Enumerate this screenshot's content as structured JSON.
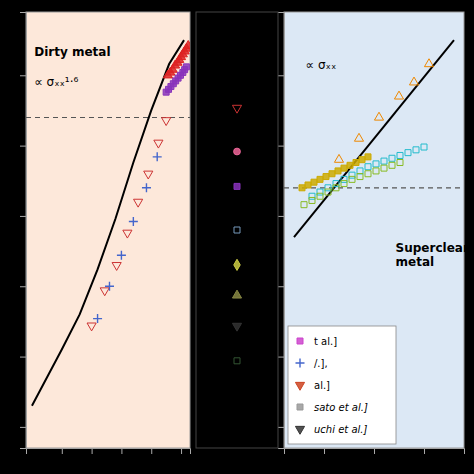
{
  "chart_data": [
    {
      "type": "scatter",
      "xlim": [
        -0.6,
        2.15
      ],
      "ylim": [
        -0.65,
        2.45
      ],
      "xticks": [
        0,
        0.5,
        1,
        1.5,
        2
      ],
      "yticks": [
        -0.5,
        0,
        0.5,
        1,
        1.5,
        2
      ],
      "tick_labels": false,
      "hline": {
        "y": 1.7,
        "color": "#555555",
        "line_style": "dashed"
      },
      "annotations": [
        {
          "text": "Dirty metal"
        },
        {
          "text": "∝ σₓₓ¹·⁶"
        }
      ],
      "series": [
        {
          "type": "line",
          "color": "#000000",
          "x": [
            -0.5,
            0.0,
            0.3,
            0.6,
            0.9,
            1.2,
            1.5,
            1.8,
            2.05
          ],
          "values": [
            -0.35,
            0.05,
            0.3,
            0.62,
            0.98,
            1.38,
            1.75,
            2.08,
            2.25
          ]
        },
        {
          "type": "scatter",
          "color": "#cc3333",
          "marker": "triangle-down-open",
          "x": [
            0.5,
            0.72,
            0.92,
            1.1,
            1.28,
            1.45,
            1.62,
            1.75
          ],
          "values": [
            0.22,
            0.47,
            0.65,
            0.88,
            1.1,
            1.3,
            1.52,
            1.68
          ]
        },
        {
          "type": "scatter",
          "color": "#4466cc",
          "marker": "plus",
          "x": [
            0.6,
            0.8,
            1.0,
            1.2,
            1.42,
            1.6
          ],
          "values": [
            0.27,
            0.5,
            0.72,
            0.96,
            1.2,
            1.42
          ]
        },
        {
          "type": "scatter",
          "color": "#dd2222",
          "marker": "triangle-up",
          "x": [
            1.78,
            1.82,
            1.86,
            1.9,
            1.94,
            1.97,
            2.0,
            2.03,
            2.06,
            2.09,
            2.12
          ],
          "values": [
            2.0,
            2.02,
            2.04,
            2.07,
            2.09,
            2.11,
            2.13,
            2.15,
            2.17,
            2.19,
            2.21
          ]
        },
        {
          "type": "scatter",
          "color": "#8833bb",
          "marker": "square",
          "x": [
            1.75,
            1.79,
            1.83,
            1.87,
            1.91,
            1.95,
            1.99,
            2.03,
            2.06,
            2.09
          ],
          "values": [
            1.88,
            1.9,
            1.92,
            1.94,
            1.96,
            1.98,
            2.0,
            2.02,
            2.04,
            2.06
          ]
        }
      ]
    },
    {
      "type": "scatter",
      "xlim": [
        2.6,
        4.4
      ],
      "ylim": [
        -0.15,
        2.95
      ],
      "xticks": [
        3,
        3.5,
        4
      ],
      "yticks": [
        0,
        0.5,
        1,
        1.5,
        2,
        2.5
      ],
      "tick_labels": false,
      "hline": {
        "y": 1.7,
        "color": "#555555",
        "line_style": "dashed"
      },
      "annotations": [
        {
          "text": "Superclean\nmetal"
        },
        {
          "text": "∝ σₓₓ"
        }
      ],
      "legend": "lower left",
      "legend_entries": [
        {
          "name": "t al.]",
          "color": "#cc44cc",
          "marker": "square"
        },
        {
          "name": "/.],",
          "color": "#4466cc",
          "marker": "plus"
        },
        {
          "name": "al.]",
          "color": "#cc4422",
          "marker": "triangle-down"
        },
        {
          "name": "sato et al.]",
          "color": "#999999",
          "marker": "square"
        },
        {
          "name": "uchi et al.]",
          "color": "#333333",
          "marker": "triangle-down"
        }
      ],
      "series": [
        {
          "type": "line",
          "color": "#000000",
          "x": [
            2.7,
            4.3
          ],
          "values": [
            1.35,
            2.75
          ]
        },
        {
          "type": "scatter",
          "color": "#ee8800",
          "marker": "triangle-up-open",
          "x": [
            3.15,
            3.35,
            3.55,
            3.75,
            3.9,
            4.05
          ],
          "values": [
            1.9,
            2.05,
            2.2,
            2.35,
            2.45,
            2.58
          ]
        },
        {
          "type": "scatter",
          "color": "#22bbcc",
          "marker": "square-open",
          "x": [
            2.88,
            2.96,
            3.04,
            3.12,
            3.2,
            3.28,
            3.36,
            3.44,
            3.52,
            3.6,
            3.68,
            3.76,
            3.84,
            3.92,
            4.0
          ],
          "values": [
            1.64,
            1.67,
            1.7,
            1.73,
            1.76,
            1.79,
            1.82,
            1.85,
            1.87,
            1.89,
            1.91,
            1.93,
            1.95,
            1.97,
            1.99
          ]
        },
        {
          "type": "scatter",
          "color": "#88bb22",
          "marker": "square-open",
          "x": [
            2.8,
            2.88,
            2.96,
            3.04,
            3.12,
            3.2,
            3.28,
            3.36,
            3.44,
            3.52,
            3.6,
            3.68,
            3.76
          ],
          "values": [
            1.58,
            1.61,
            1.64,
            1.67,
            1.7,
            1.73,
            1.76,
            1.78,
            1.8,
            1.82,
            1.84,
            1.86,
            1.88
          ]
        },
        {
          "type": "scatter",
          "color": "#ccaa00",
          "marker": "square",
          "x": [
            2.78,
            2.84,
            2.9,
            2.96,
            3.02,
            3.08,
            3.14,
            3.2,
            3.26,
            3.32,
            3.38,
            3.44
          ],
          "values": [
            1.7,
            1.72,
            1.74,
            1.76,
            1.78,
            1.8,
            1.82,
            1.84,
            1.86,
            1.88,
            1.9,
            1.92
          ]
        }
      ]
    },
    {
      "type": "scatter",
      "xlim": [
        0,
        1
      ],
      "ylim": [
        0,
        1
      ],
      "tick_labels": false,
      "series": [
        {
          "type": "scatter",
          "color": "#cc3333",
          "marker": "triangle-down-open",
          "x": [
            0.5
          ],
          "values": [
            0.78
          ]
        },
        {
          "type": "scatter",
          "color": "#ee6699",
          "marker": "circle",
          "x": [
            0.5
          ],
          "values": [
            0.68
          ]
        },
        {
          "type": "scatter",
          "color": "#8833bb",
          "marker": "square",
          "x": [
            0.5
          ],
          "values": [
            0.6
          ]
        },
        {
          "type": "scatter",
          "color": "#7799bb",
          "marker": "square-open",
          "x": [
            0.5
          ],
          "values": [
            0.5
          ]
        },
        {
          "type": "scatter",
          "color": "#cccc44",
          "marker": "diamond",
          "x": [
            0.5
          ],
          "values": [
            0.42
          ]
        },
        {
          "type": "scatter",
          "color": "#888844",
          "marker": "triangle-up",
          "x": [
            0.5
          ],
          "values": [
            0.35
          ]
        },
        {
          "type": "scatter",
          "color": "#333333",
          "marker": "triangle-down",
          "x": [
            0.5
          ],
          "values": [
            0.28
          ]
        },
        {
          "type": "scatter",
          "color": "#335533",
          "marker": "square-open",
          "x": [
            0.5
          ],
          "values": [
            0.2
          ]
        }
      ]
    }
  ]
}
